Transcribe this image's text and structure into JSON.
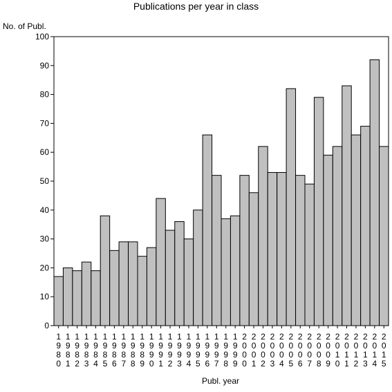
{
  "chart_data": {
    "type": "bar",
    "title": "Publications per year in class",
    "ylabel": "No. of Publ.",
    "xlabel": "Publ. year",
    "categories": [
      "1980",
      "1981",
      "1982",
      "1983",
      "1984",
      "1985",
      "1986",
      "1987",
      "1988",
      "1989",
      "1990",
      "1991",
      "1992",
      "1993",
      "1994",
      "1995",
      "1996",
      "1997",
      "1998",
      "1999",
      "2000",
      "2001",
      "2002",
      "2003",
      "2004",
      "2005",
      "2006",
      "2007",
      "2008",
      "2009",
      "2010",
      "2011",
      "2012",
      "2013",
      "2014",
      "2015"
    ],
    "values": [
      17,
      20,
      19,
      22,
      19,
      38,
      26,
      29,
      29,
      24,
      27,
      44,
      33,
      36,
      30,
      40,
      66,
      52,
      37,
      38,
      52,
      46,
      62,
      53,
      53,
      82,
      52,
      49,
      79,
      59,
      62,
      83,
      66,
      69,
      92,
      62
    ],
    "ylim": [
      0,
      100
    ],
    "yticks": [
      0,
      10,
      20,
      30,
      40,
      50,
      60,
      70,
      80,
      90,
      100
    ],
    "bar_color": "#c0c0c0",
    "bar_edge_color": "#000000",
    "grid": false,
    "legend": "none"
  }
}
